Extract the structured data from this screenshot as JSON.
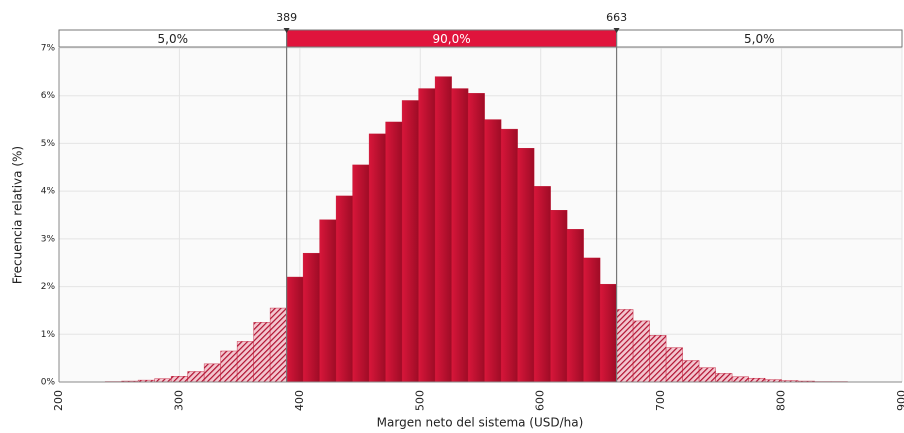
{
  "chart_data": {
    "type": "histogram",
    "xlabel": "Margen neto del sistema (USD/ha)",
    "ylabel": "Frecuencia relativa (%)",
    "bins": [
      238.3,
      252,
      265.7,
      279.4,
      293.1,
      306.8,
      320.5,
      334.2,
      347.9,
      361.6,
      375.3,
      389,
      402.7,
      416.4,
      430.1,
      443.8,
      457.5,
      471.2,
      484.9,
      498.6,
      512.3,
      526,
      539.7,
      553.4,
      567.1,
      580.8,
      594.5,
      608.2,
      621.9,
      635.6,
      649.3,
      663,
      676.7,
      690.4,
      704.1,
      717.8,
      731.5,
      745.2,
      758.9,
      772.6,
      786.3,
      800,
      813.7,
      827.4,
      841.1,
      854.8
    ],
    "values": [
      0.01,
      0.02,
      0.04,
      0.07,
      0.12,
      0.22,
      0.38,
      0.65,
      0.85,
      1.25,
      1.55,
      2.2,
      2.7,
      3.4,
      3.9,
      4.55,
      5.2,
      5.45,
      5.9,
      6.15,
      6.4,
      6.15,
      6.05,
      5.5,
      5.3,
      4.9,
      4.1,
      3.6,
      3.2,
      2.6,
      2.05,
      1.52,
      1.28,
      0.98,
      0.72,
      0.45,
      0.3,
      0.18,
      0.11,
      0.08,
      0.05,
      0.03,
      0.02,
      0.01,
      0.01
    ],
    "color": "#c0102e",
    "markers": [
      389,
      663
    ],
    "band_labels": [
      "5,0%",
      "90,0%",
      "5,0%"
    ],
    "xlim": [
      200,
      900
    ],
    "xticks": [
      200,
      300,
      400,
      500,
      600,
      700,
      800,
      900
    ],
    "ylim": [
      0,
      7
    ],
    "yticks": [
      {
        "value": 0,
        "label": "0%"
      },
      {
        "value": 1,
        "label": "1%"
      },
      {
        "value": 2,
        "label": "2%"
      },
      {
        "value": 3,
        "label": "3%"
      },
      {
        "value": 4,
        "label": "4%"
      },
      {
        "value": 5,
        "label": "5%"
      },
      {
        "value": 6,
        "label": "6%"
      },
      {
        "value": 7,
        "label": "7%"
      }
    ],
    "grid": true
  }
}
